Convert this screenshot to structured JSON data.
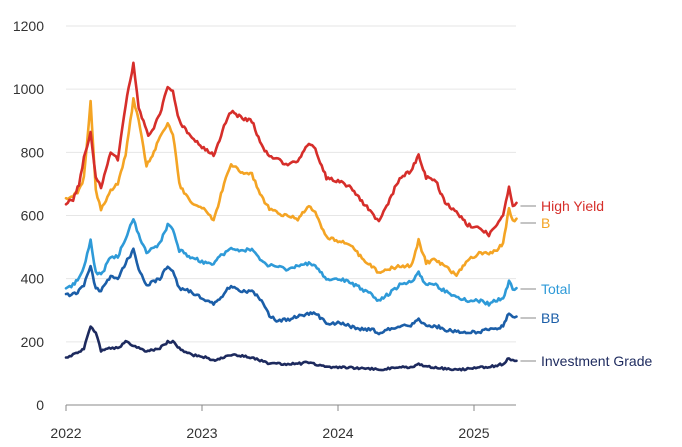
{
  "chart_data": {
    "type": "line",
    "title": "",
    "xlabel": "",
    "ylabel": "",
    "xlim": [
      "2022-01-01",
      "2025-04-30"
    ],
    "ylim": [
      0,
      1200
    ],
    "x_ticks": [
      "2022",
      "2023",
      "2024",
      "2025"
    ],
    "y_ticks": [
      "0",
      "200",
      "400",
      "600",
      "800",
      "1000",
      "1200"
    ],
    "grid": "horizontal",
    "legend": "labels at right end of lines",
    "series": [
      {
        "name": "High Yield",
        "color": "#d62e2a",
        "points": [
          [
            "2022-01-01",
            640
          ],
          [
            "2022-01-20",
            650
          ],
          [
            "2022-02-05",
            700
          ],
          [
            "2022-02-18",
            780
          ],
          [
            "2022-03-08",
            860
          ],
          [
            "2022-03-22",
            720
          ],
          [
            "2022-04-05",
            690
          ],
          [
            "2022-05-01",
            800
          ],
          [
            "2022-05-20",
            780
          ],
          [
            "2022-06-10",
            950
          ],
          [
            "2022-07-01",
            1080
          ],
          [
            "2022-07-15",
            940
          ],
          [
            "2022-08-10",
            850
          ],
          [
            "2022-08-25",
            880
          ],
          [
            "2022-09-10",
            920
          ],
          [
            "2022-10-01",
            1010
          ],
          [
            "2022-10-15",
            990
          ],
          [
            "2022-11-01",
            900
          ],
          [
            "2022-12-01",
            850
          ],
          [
            "2023-01-10",
            810
          ],
          [
            "2023-02-01",
            790
          ],
          [
            "2023-03-01",
            880
          ],
          [
            "2023-03-20",
            930
          ],
          [
            "2023-04-15",
            910
          ],
          [
            "2023-05-15",
            900
          ],
          [
            "2023-06-10",
            820
          ],
          [
            "2023-07-01",
            790
          ],
          [
            "2023-07-20",
            780
          ],
          [
            "2023-08-15",
            760
          ],
          [
            "2023-09-15",
            770
          ],
          [
            "2023-10-15",
            830
          ],
          [
            "2023-11-01",
            810
          ],
          [
            "2023-12-01",
            720
          ],
          [
            "2024-01-01",
            710
          ],
          [
            "2024-02-01",
            690
          ],
          [
            "2024-03-01",
            650
          ],
          [
            "2024-04-01",
            610
          ],
          [
            "2024-04-20",
            580
          ],
          [
            "2024-05-15",
            640
          ],
          [
            "2024-06-15",
            720
          ],
          [
            "2024-07-15",
            740
          ],
          [
            "2024-08-05",
            790
          ],
          [
            "2024-08-25",
            720
          ],
          [
            "2024-09-20",
            710
          ],
          [
            "2024-10-15",
            640
          ],
          [
            "2024-11-15",
            610
          ],
          [
            "2024-12-15",
            570
          ],
          [
            "2025-01-15",
            560
          ],
          [
            "2025-02-10",
            540
          ],
          [
            "2025-02-28",
            560
          ],
          [
            "2025-03-20",
            600
          ],
          [
            "2025-04-05",
            690
          ],
          [
            "2025-04-15",
            630
          ],
          [
            "2025-04-25",
            640
          ]
        ]
      },
      {
        "name": "B",
        "color": "#f4a424",
        "points": [
          [
            "2022-01-01",
            650
          ],
          [
            "2022-01-20",
            660
          ],
          [
            "2022-02-05",
            680
          ],
          [
            "2022-02-18",
            720
          ],
          [
            "2022-03-08",
            960
          ],
          [
            "2022-03-22",
            680
          ],
          [
            "2022-04-05",
            620
          ],
          [
            "2022-05-01",
            680
          ],
          [
            "2022-05-20",
            700
          ],
          [
            "2022-06-10",
            790
          ],
          [
            "2022-07-01",
            970
          ],
          [
            "2022-07-15",
            900
          ],
          [
            "2022-08-05",
            760
          ],
          [
            "2022-08-25",
            800
          ],
          [
            "2022-09-10",
            850
          ],
          [
            "2022-10-01",
            890
          ],
          [
            "2022-10-15",
            860
          ],
          [
            "2022-11-01",
            700
          ],
          [
            "2022-12-01",
            640
          ],
          [
            "2023-01-10",
            620
          ],
          [
            "2023-02-01",
            580
          ],
          [
            "2023-03-01",
            700
          ],
          [
            "2023-03-20",
            760
          ],
          [
            "2023-04-15",
            740
          ],
          [
            "2023-05-15",
            730
          ],
          [
            "2023-06-10",
            660
          ],
          [
            "2023-07-01",
            620
          ],
          [
            "2023-07-20",
            610
          ],
          [
            "2023-08-15",
            600
          ],
          [
            "2023-09-15",
            590
          ],
          [
            "2023-10-15",
            630
          ],
          [
            "2023-11-01",
            610
          ],
          [
            "2023-12-01",
            530
          ],
          [
            "2024-01-01",
            520
          ],
          [
            "2024-02-01",
            510
          ],
          [
            "2024-03-01",
            470
          ],
          [
            "2024-04-01",
            440
          ],
          [
            "2024-04-20",
            420
          ],
          [
            "2024-05-15",
            430
          ],
          [
            "2024-06-15",
            440
          ],
          [
            "2024-07-15",
            440
          ],
          [
            "2024-08-05",
            520
          ],
          [
            "2024-08-25",
            450
          ],
          [
            "2024-09-20",
            460
          ],
          [
            "2024-10-15",
            440
          ],
          [
            "2024-11-15",
            410
          ],
          [
            "2024-12-15",
            460
          ],
          [
            "2025-01-15",
            480
          ],
          [
            "2025-02-10",
            480
          ],
          [
            "2025-02-28",
            490
          ],
          [
            "2025-03-20",
            510
          ],
          [
            "2025-04-05",
            620
          ],
          [
            "2025-04-15",
            580
          ],
          [
            "2025-04-25",
            590
          ]
        ]
      },
      {
        "name": "Total",
        "color": "#2e9ad8",
        "points": [
          [
            "2022-01-01",
            370
          ],
          [
            "2022-01-20",
            380
          ],
          [
            "2022-02-05",
            400
          ],
          [
            "2022-02-18",
            440
          ],
          [
            "2022-03-08",
            520
          ],
          [
            "2022-03-22",
            420
          ],
          [
            "2022-04-05",
            410
          ],
          [
            "2022-05-01",
            470
          ],
          [
            "2022-05-20",
            470
          ],
          [
            "2022-06-10",
            530
          ],
          [
            "2022-07-01",
            590
          ],
          [
            "2022-07-15",
            540
          ],
          [
            "2022-08-05",
            480
          ],
          [
            "2022-08-25",
            500
          ],
          [
            "2022-09-10",
            510
          ],
          [
            "2022-10-01",
            570
          ],
          [
            "2022-10-15",
            560
          ],
          [
            "2022-11-01",
            490
          ],
          [
            "2022-12-01",
            470
          ],
          [
            "2023-01-10",
            450
          ],
          [
            "2023-02-01",
            450
          ],
          [
            "2023-03-01",
            480
          ],
          [
            "2023-03-20",
            500
          ],
          [
            "2023-04-15",
            490
          ],
          [
            "2023-05-15",
            490
          ],
          [
            "2023-06-10",
            460
          ],
          [
            "2023-07-01",
            440
          ],
          [
            "2023-07-20",
            440
          ],
          [
            "2023-08-15",
            430
          ],
          [
            "2023-09-15",
            440
          ],
          [
            "2023-10-15",
            450
          ],
          [
            "2023-11-01",
            440
          ],
          [
            "2023-12-01",
            400
          ],
          [
            "2024-01-01",
            400
          ],
          [
            "2024-02-01",
            390
          ],
          [
            "2024-03-01",
            370
          ],
          [
            "2024-04-01",
            350
          ],
          [
            "2024-04-20",
            330
          ],
          [
            "2024-05-15",
            350
          ],
          [
            "2024-06-15",
            380
          ],
          [
            "2024-07-15",
            390
          ],
          [
            "2024-08-05",
            420
          ],
          [
            "2024-08-25",
            380
          ],
          [
            "2024-09-20",
            380
          ],
          [
            "2024-10-15",
            360
          ],
          [
            "2024-11-15",
            340
          ],
          [
            "2024-12-15",
            330
          ],
          [
            "2025-01-15",
            330
          ],
          [
            "2025-02-10",
            320
          ],
          [
            "2025-02-28",
            330
          ],
          [
            "2025-03-20",
            340
          ],
          [
            "2025-04-05",
            390
          ],
          [
            "2025-04-15",
            370
          ],
          [
            "2025-04-25",
            370
          ]
        ]
      },
      {
        "name": "BB",
        "color": "#1b5ea8",
        "points": [
          [
            "2022-01-01",
            350
          ],
          [
            "2022-01-20",
            350
          ],
          [
            "2022-02-05",
            360
          ],
          [
            "2022-02-18",
            380
          ],
          [
            "2022-03-08",
            440
          ],
          [
            "2022-03-22",
            370
          ],
          [
            "2022-04-05",
            360
          ],
          [
            "2022-05-01",
            410
          ],
          [
            "2022-05-20",
            400
          ],
          [
            "2022-06-10",
            450
          ],
          [
            "2022-07-01",
            490
          ],
          [
            "2022-07-15",
            430
          ],
          [
            "2022-08-05",
            380
          ],
          [
            "2022-08-25",
            390
          ],
          [
            "2022-09-10",
            400
          ],
          [
            "2022-10-01",
            440
          ],
          [
            "2022-10-15",
            420
          ],
          [
            "2022-11-01",
            370
          ],
          [
            "2022-12-01",
            360
          ],
          [
            "2023-01-10",
            330
          ],
          [
            "2023-02-01",
            320
          ],
          [
            "2023-03-01",
            350
          ],
          [
            "2023-03-20",
            380
          ],
          [
            "2023-04-15",
            360
          ],
          [
            "2023-05-15",
            360
          ],
          [
            "2023-06-10",
            330
          ],
          [
            "2023-07-01",
            280
          ],
          [
            "2023-07-20",
            270
          ],
          [
            "2023-08-15",
            270
          ],
          [
            "2023-09-15",
            280
          ],
          [
            "2023-10-15",
            290
          ],
          [
            "2023-11-01",
            290
          ],
          [
            "2023-12-01",
            260
          ],
          [
            "2024-01-01",
            260
          ],
          [
            "2024-02-01",
            250
          ],
          [
            "2024-03-01",
            240
          ],
          [
            "2024-04-01",
            240
          ],
          [
            "2024-04-20",
            230
          ],
          [
            "2024-05-15",
            240
          ],
          [
            "2024-06-15",
            250
          ],
          [
            "2024-07-15",
            250
          ],
          [
            "2024-08-05",
            270
          ],
          [
            "2024-08-25",
            250
          ],
          [
            "2024-09-20",
            250
          ],
          [
            "2024-10-15",
            240
          ],
          [
            "2024-11-15",
            230
          ],
          [
            "2024-12-15",
            230
          ],
          [
            "2025-01-15",
            230
          ],
          [
            "2025-02-10",
            240
          ],
          [
            "2025-02-28",
            240
          ],
          [
            "2025-03-20",
            250
          ],
          [
            "2025-04-05",
            290
          ],
          [
            "2025-04-15",
            280
          ],
          [
            "2025-04-25",
            280
          ]
        ]
      },
      {
        "name": "Investment Grade",
        "color": "#1d2a5e",
        "points": [
          [
            "2022-01-01",
            150
          ],
          [
            "2022-01-20",
            160
          ],
          [
            "2022-02-05",
            165
          ],
          [
            "2022-02-18",
            180
          ],
          [
            "2022-03-08",
            250
          ],
          [
            "2022-03-22",
            230
          ],
          [
            "2022-04-05",
            170
          ],
          [
            "2022-05-01",
            180
          ],
          [
            "2022-05-20",
            180
          ],
          [
            "2022-06-10",
            200
          ],
          [
            "2022-07-01",
            190
          ],
          [
            "2022-07-15",
            180
          ],
          [
            "2022-08-05",
            170
          ],
          [
            "2022-08-25",
            175
          ],
          [
            "2022-09-10",
            180
          ],
          [
            "2022-10-01",
            200
          ],
          [
            "2022-10-15",
            200
          ],
          [
            "2022-11-01",
            180
          ],
          [
            "2022-12-01",
            160
          ],
          [
            "2023-01-10",
            150
          ],
          [
            "2023-02-01",
            140
          ],
          [
            "2023-03-01",
            150
          ],
          [
            "2023-03-20",
            160
          ],
          [
            "2023-04-15",
            155
          ],
          [
            "2023-05-15",
            150
          ],
          [
            "2023-06-10",
            140
          ],
          [
            "2023-07-01",
            130
          ],
          [
            "2023-07-20",
            130
          ],
          [
            "2023-08-15",
            130
          ],
          [
            "2023-09-15",
            130
          ],
          [
            "2023-10-15",
            135
          ],
          [
            "2023-11-01",
            130
          ],
          [
            "2023-12-01",
            120
          ],
          [
            "2024-01-01",
            120
          ],
          [
            "2024-02-01",
            120
          ],
          [
            "2024-03-01",
            115
          ],
          [
            "2024-04-01",
            115
          ],
          [
            "2024-04-20",
            110
          ],
          [
            "2024-05-15",
            115
          ],
          [
            "2024-06-15",
            120
          ],
          [
            "2024-07-15",
            120
          ],
          [
            "2024-08-05",
            130
          ],
          [
            "2024-08-25",
            120
          ],
          [
            "2024-09-20",
            120
          ],
          [
            "2024-10-15",
            115
          ],
          [
            "2024-11-15",
            110
          ],
          [
            "2024-12-15",
            115
          ],
          [
            "2025-01-15",
            120
          ],
          [
            "2025-02-10",
            120
          ],
          [
            "2025-02-28",
            125
          ],
          [
            "2025-03-20",
            130
          ],
          [
            "2025-04-05",
            150
          ],
          [
            "2025-04-15",
            140
          ],
          [
            "2025-04-25",
            140
          ]
        ]
      }
    ]
  }
}
